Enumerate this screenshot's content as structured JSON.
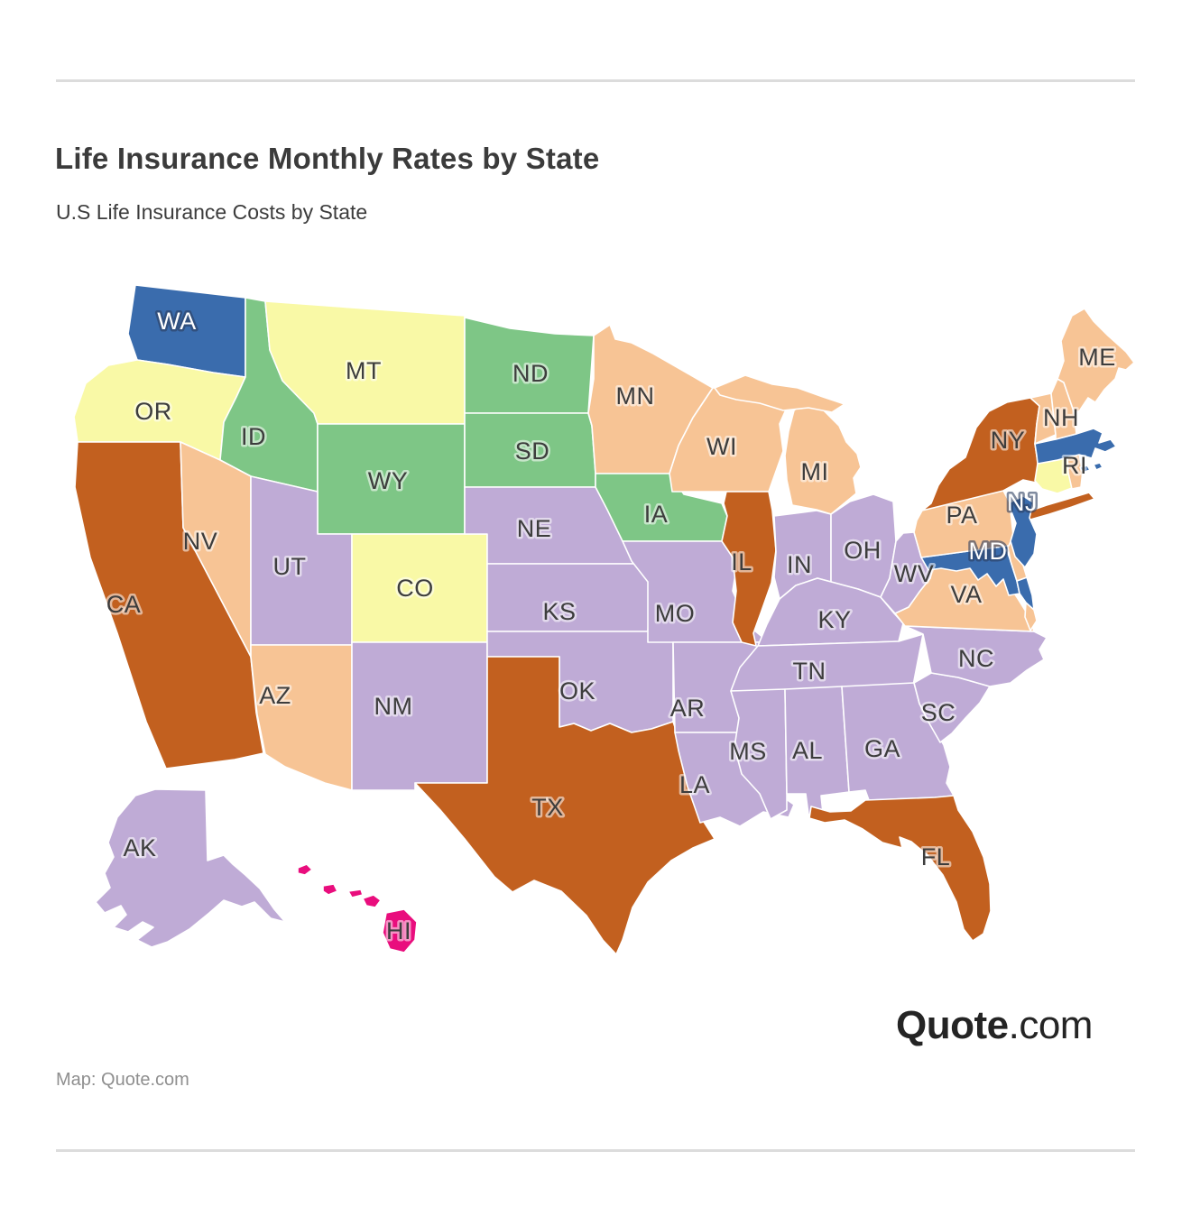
{
  "header": {
    "title": "Life Insurance Monthly Rates by State",
    "subtitle": "U.S Life Insurance Costs by State"
  },
  "footer": {
    "attribution": "Map: Quote.com",
    "logo_bold": "Quote",
    "logo_rest": ".com"
  },
  "palette": {
    "blue": "#3A6CAD",
    "yellow": "#F9F9A6",
    "green": "#7EC686",
    "peach": "#F7C495",
    "purple": "#BFABD6",
    "orange": "#C2601F",
    "magenta": "#E90D7D",
    "state_border": "#FFFFFF",
    "label_dark": "#3D3D3D",
    "label_light": "#FFFFFF"
  },
  "chart_data": {
    "type": "choropleth",
    "title": "Life Insurance Monthly Rates by State",
    "subtitle": "U.S Life Insurance Costs by State",
    "source": "Map: Quote.com",
    "legend_visible": false,
    "note": "Color categories only; no numeric legend is shown in the image",
    "states": [
      {
        "abbr": "WA",
        "category": "blue",
        "labeled": true,
        "label_style": "light"
      },
      {
        "abbr": "OR",
        "category": "yellow",
        "labeled": true,
        "label_style": "dark"
      },
      {
        "abbr": "CA",
        "category": "orange",
        "labeled": true,
        "label_style": "dark"
      },
      {
        "abbr": "ID",
        "category": "green",
        "labeled": true,
        "label_style": "dark"
      },
      {
        "abbr": "NV",
        "category": "peach",
        "labeled": true,
        "label_style": "dark"
      },
      {
        "abbr": "MT",
        "category": "yellow",
        "labeled": true,
        "label_style": "dark"
      },
      {
        "abbr": "WY",
        "category": "green",
        "labeled": true,
        "label_style": "dark"
      },
      {
        "abbr": "UT",
        "category": "purple",
        "labeled": true,
        "label_style": "dark"
      },
      {
        "abbr": "CO",
        "category": "yellow",
        "labeled": true,
        "label_style": "dark"
      },
      {
        "abbr": "AZ",
        "category": "peach",
        "labeled": true,
        "label_style": "dark"
      },
      {
        "abbr": "NM",
        "category": "purple",
        "labeled": true,
        "label_style": "dark"
      },
      {
        "abbr": "ND",
        "category": "green",
        "labeled": true,
        "label_style": "dark"
      },
      {
        "abbr": "SD",
        "category": "green",
        "labeled": true,
        "label_style": "dark"
      },
      {
        "abbr": "NE",
        "category": "purple",
        "labeled": true,
        "label_style": "dark"
      },
      {
        "abbr": "KS",
        "category": "purple",
        "labeled": true,
        "label_style": "dark"
      },
      {
        "abbr": "OK",
        "category": "purple",
        "labeled": true,
        "label_style": "dark"
      },
      {
        "abbr": "TX",
        "category": "orange",
        "labeled": true,
        "label_style": "dark"
      },
      {
        "abbr": "MN",
        "category": "peach",
        "labeled": true,
        "label_style": "dark"
      },
      {
        "abbr": "IA",
        "category": "green",
        "labeled": true,
        "label_style": "dark"
      },
      {
        "abbr": "MO",
        "category": "purple",
        "labeled": true,
        "label_style": "dark"
      },
      {
        "abbr": "AR",
        "category": "purple",
        "labeled": true,
        "label_style": "dark"
      },
      {
        "abbr": "LA",
        "category": "purple",
        "labeled": true,
        "label_style": "dark"
      },
      {
        "abbr": "WI",
        "category": "peach",
        "labeled": true,
        "label_style": "dark"
      },
      {
        "abbr": "IL",
        "category": "orange",
        "labeled": true,
        "label_style": "dark"
      },
      {
        "abbr": "MI",
        "category": "peach",
        "labeled": true,
        "label_style": "dark"
      },
      {
        "abbr": "IN",
        "category": "purple",
        "labeled": true,
        "label_style": "dark"
      },
      {
        "abbr": "OH",
        "category": "purple",
        "labeled": true,
        "label_style": "dark"
      },
      {
        "abbr": "KY",
        "category": "purple",
        "labeled": true,
        "label_style": "dark"
      },
      {
        "abbr": "TN",
        "category": "purple",
        "labeled": true,
        "label_style": "dark"
      },
      {
        "abbr": "MS",
        "category": "purple",
        "labeled": true,
        "label_style": "dark"
      },
      {
        "abbr": "AL",
        "category": "purple",
        "labeled": true,
        "label_style": "dark"
      },
      {
        "abbr": "GA",
        "category": "purple",
        "labeled": true,
        "label_style": "dark"
      },
      {
        "abbr": "FL",
        "category": "orange",
        "labeled": true,
        "label_style": "dark"
      },
      {
        "abbr": "SC",
        "category": "purple",
        "labeled": true,
        "label_style": "dark"
      },
      {
        "abbr": "NC",
        "category": "purple",
        "labeled": true,
        "label_style": "dark"
      },
      {
        "abbr": "VA",
        "category": "peach",
        "labeled": true,
        "label_style": "dark"
      },
      {
        "abbr": "WV",
        "category": "purple",
        "labeled": true,
        "label_style": "dark"
      },
      {
        "abbr": "MD",
        "category": "blue",
        "labeled": true,
        "label_style": "light"
      },
      {
        "abbr": "DE",
        "category": "peach",
        "labeled": false,
        "label_style": "dark"
      },
      {
        "abbr": "PA",
        "category": "peach",
        "labeled": true,
        "label_style": "dark"
      },
      {
        "abbr": "NY",
        "category": "orange",
        "labeled": true,
        "label_style": "dark"
      },
      {
        "abbr": "NJ",
        "category": "blue",
        "labeled": true,
        "label_style": "light"
      },
      {
        "abbr": "CT",
        "category": "yellow",
        "labeled": false,
        "label_style": "dark"
      },
      {
        "abbr": "RI",
        "category": "peach",
        "labeled": true,
        "label_style": "dark"
      },
      {
        "abbr": "MA",
        "category": "blue",
        "labeled": false,
        "label_style": "dark"
      },
      {
        "abbr": "VT",
        "category": "peach",
        "labeled": false,
        "label_style": "dark"
      },
      {
        "abbr": "NH",
        "category": "peach",
        "labeled": true,
        "label_style": "dark"
      },
      {
        "abbr": "ME",
        "category": "peach",
        "labeled": true,
        "label_style": "dark"
      },
      {
        "abbr": "AK",
        "category": "purple",
        "labeled": true,
        "label_style": "dark"
      },
      {
        "abbr": "HI",
        "category": "magenta",
        "labeled": true,
        "label_style": "dark"
      }
    ]
  }
}
